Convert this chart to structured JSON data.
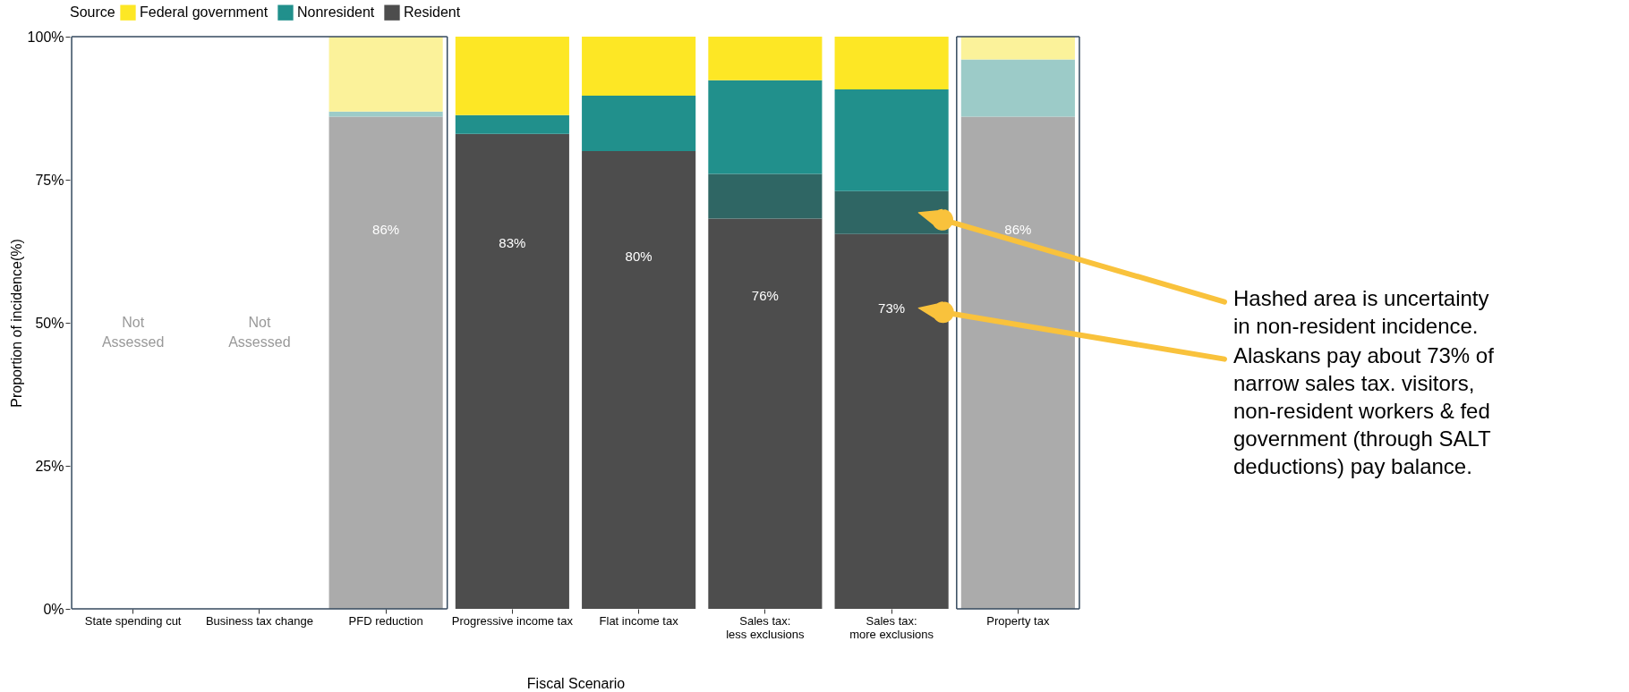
{
  "chart_data": {
    "type": "bar",
    "stacked": true,
    "xlabel": "Fiscal Scenario",
    "ylabel": "Proportion of incidence(%)",
    "legend_title": "Source",
    "legend": "top",
    "grid": false,
    "categories": [
      "State spending cut",
      "Business tax change",
      "PFD reduction",
      "Progressive income tax",
      "Flat income tax",
      "Sales tax:\nless exclusions",
      "Sales tax:\nmore exclusions",
      "Property tax"
    ],
    "ylim": [
      0,
      100
    ],
    "yticks": [
      {
        "value": 0,
        "label": "0%"
      },
      {
        "value": 25,
        "label": "25%"
      },
      {
        "value": 50,
        "label": "50%"
      },
      {
        "value": 75,
        "label": "75%"
      },
      {
        "value": 100,
        "label": "100%"
      }
    ],
    "series": [
      {
        "name": "Resident",
        "color": "#4d4d4d",
        "colors": [
          "#4d4d4d",
          "#4d4d4d",
          "#ababab",
          "#4d4d4d",
          "#4d4d4d",
          "#4d4d4d",
          "#4d4d4d",
          "#ababab"
        ],
        "values": [
          null,
          null,
          86,
          83,
          80,
          68.2,
          65.5,
          86
        ],
        "value_labels": [
          null,
          null,
          "86%",
          "83%",
          "80%",
          null,
          null,
          "86%"
        ]
      },
      {
        "color": "#2f6664",
        "values": [
          null,
          null,
          null,
          null,
          null,
          7.8,
          7.5,
          null
        ]
      },
      {
        "name": "Nonresident",
        "color": "#21908c",
        "colors": [
          "#21908c",
          "#21908c",
          "#9ccbc8",
          "#21908c",
          "#21908c",
          "#21908c",
          "#21908c",
          "#9ccbc8"
        ],
        "values": [
          null,
          null,
          0.9,
          3.3,
          9.7,
          16.4,
          17.8,
          10
        ]
      },
      {
        "name": "Federal government",
        "color": "#fde725",
        "colors": [
          "#fde725",
          "#fde725",
          "#fbf29a",
          "#fde725",
          "#fde725",
          "#fde725",
          "#fde725",
          "#fbf29a"
        ],
        "values": [
          null,
          null,
          13.1,
          13.7,
          10.3,
          7.6,
          9.2,
          4
        ]
      }
    ],
    "annotations": [
      "76%",
      "73%",
      "Not\nAssessed",
      "Not\nAssessed",
      "Hashed area is uncertainty\nin non-resident incidence.",
      "Alaskans pay about 73% of\nnarrow sales tax. visitors,\nnon-resident workers & fed\ngovernment (through SALT\ndeductions) pay balance."
    ]
  }
}
